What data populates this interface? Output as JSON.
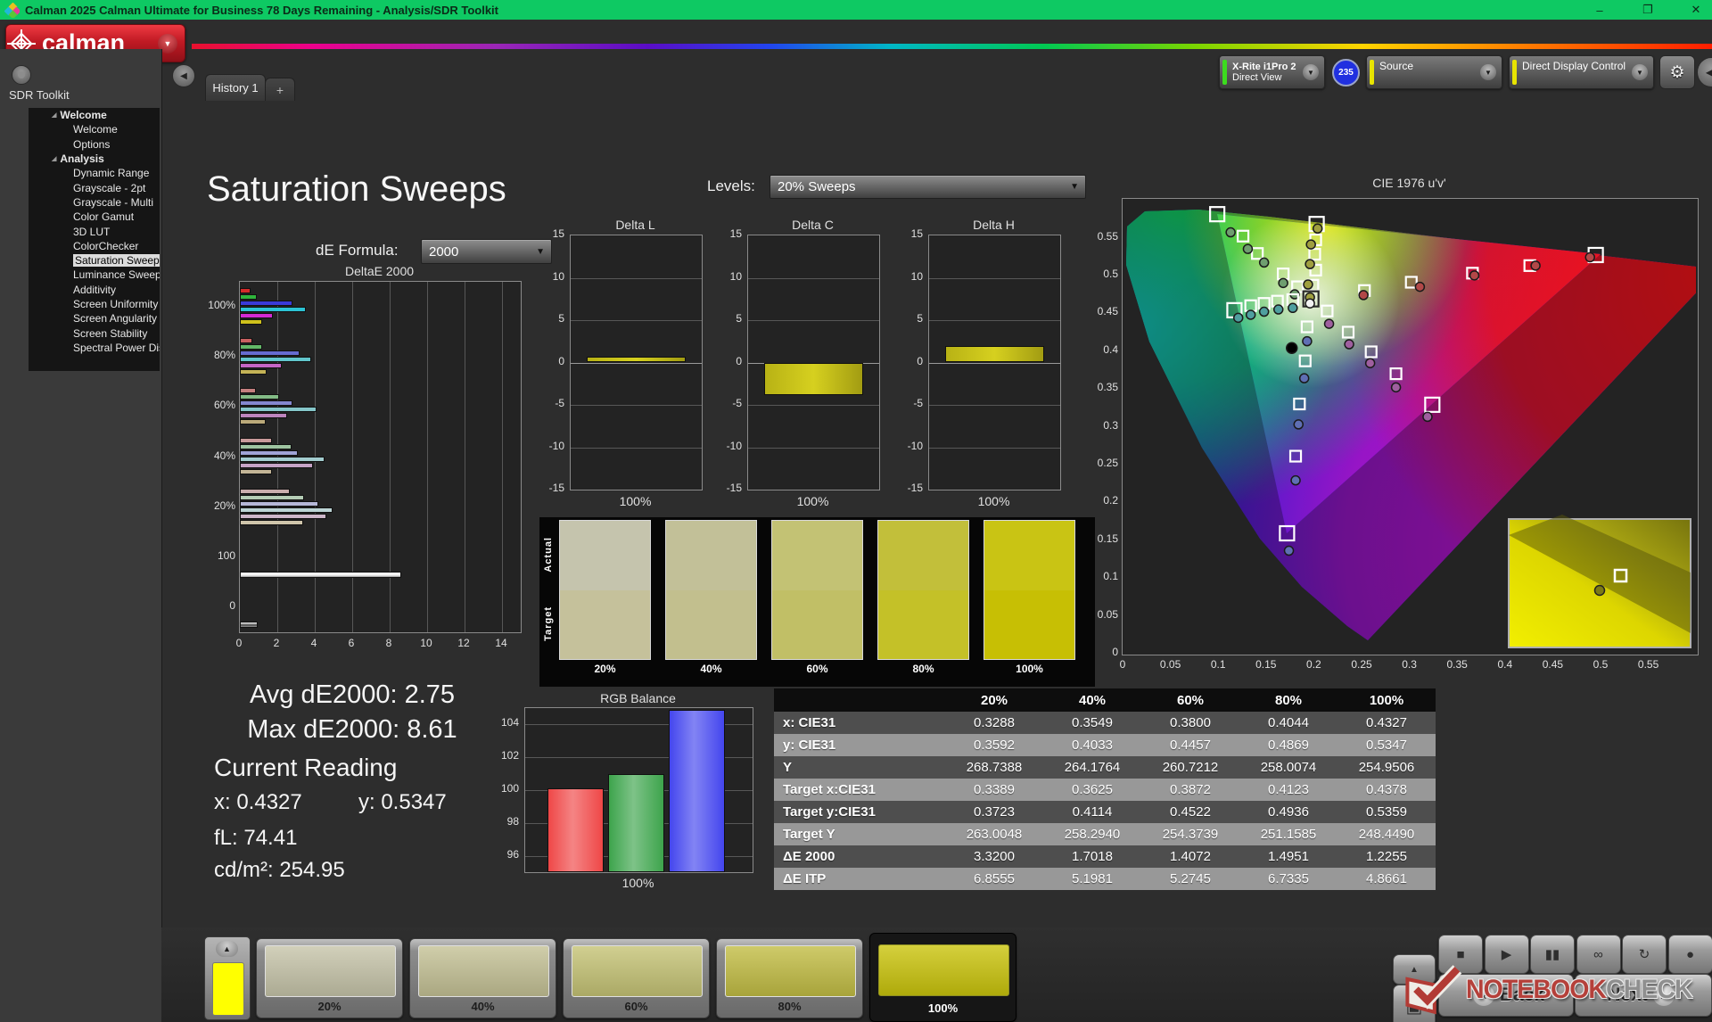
{
  "window": {
    "title": "Calman 2025 Calman Ultimate for Business 78 Days Remaining  - Analysis/SDR Toolkit",
    "controls": {
      "minimize": "–",
      "restore": "❐",
      "close": "✕"
    }
  },
  "brand": {
    "logo_text": "calman",
    "accent": "#c01a24"
  },
  "tabs": {
    "active": "History 1",
    "add": "+"
  },
  "top_controls": {
    "meter": {
      "line1": "X-Rite i1Pro 2",
      "line2": "Direct View",
      "badge": "235",
      "accent": "#3cdc1e",
      "badge_color": "#2030e0"
    },
    "source": {
      "label": "Source",
      "accent": "#e8e400"
    },
    "display_control": {
      "label": "Direct Display Control",
      "accent": "#e8e400"
    },
    "icons": [
      "dropdown-arrow",
      "gear",
      "collapse-left"
    ]
  },
  "sidebar": {
    "header": "SDR Toolkit",
    "tree": [
      {
        "label": "Welcome",
        "type": "group"
      },
      {
        "label": "Welcome",
        "type": "child"
      },
      {
        "label": "Options",
        "type": "child"
      },
      {
        "label": "Analysis",
        "type": "group"
      },
      {
        "label": "Dynamic Range",
        "type": "child"
      },
      {
        "label": "Grayscale - 2pt",
        "type": "child"
      },
      {
        "label": "Grayscale - Multi",
        "type": "child"
      },
      {
        "label": "Color Gamut",
        "type": "child"
      },
      {
        "label": "3D LUT",
        "type": "child"
      },
      {
        "label": "ColorChecker",
        "type": "child"
      },
      {
        "label": "Saturation Sweeps",
        "type": "child",
        "selected": true
      },
      {
        "label": "Luminance Sweeps",
        "type": "child"
      },
      {
        "label": "Additivity",
        "type": "child"
      },
      {
        "label": "Screen Uniformity",
        "type": "child"
      },
      {
        "label": "Screen Angularity",
        "type": "child"
      },
      {
        "label": "Screen Stability",
        "type": "child"
      },
      {
        "label": "Spectral Power Dist.",
        "type": "child"
      }
    ]
  },
  "main": {
    "title": "Saturation Sweeps",
    "levels_label": "Levels:",
    "levels_value": "20% Sweeps",
    "de_formula_label": "dE Formula:",
    "de_formula_value": "2000"
  },
  "readings": {
    "avg": "Avg dE2000: 2.75",
    "max": "Max dE2000: 8.61",
    "heading": "Current Reading",
    "x": "x: 0.4327",
    "y": "y: 0.5347",
    "fl": "fL: 74.41",
    "cdm2": "cd/m²: 254.95"
  },
  "chart_data": [
    {
      "id": "deltaE2000",
      "type": "bar",
      "orientation": "horizontal",
      "title": "DeltaE 2000",
      "xticks": [
        "0",
        "2",
        "4",
        "6",
        "8",
        "10",
        "12",
        "14"
      ],
      "xlim": [
        0,
        15
      ],
      "series_names": [
        "red",
        "green",
        "blue",
        "cyan",
        "magenta",
        "yellow"
      ],
      "groups": [
        {
          "label": "100%",
          "values": [
            0.55,
            0.9,
            2.8,
            3.5,
            1.75,
            1.2
          ],
          "colors": [
            "#d42a2a",
            "#2fb53c",
            "#3a3ad8",
            "#2cc3d4",
            "#d42ad4",
            "#cfc11c"
          ]
        },
        {
          "label": "80%",
          "values": [
            0.65,
            1.2,
            3.2,
            3.8,
            2.25,
            1.45
          ],
          "colors": [
            "#c96060",
            "#63b868",
            "#666bd0",
            "#62c6cc",
            "#c565c5",
            "#c4b356"
          ]
        },
        {
          "label": "60%",
          "values": [
            0.85,
            2.1,
            2.8,
            4.1,
            2.5,
            1.4
          ],
          "colors": [
            "#c47f7f",
            "#83bb86",
            "#8487cf",
            "#85c6c9",
            "#bd84bd",
            "#bba97a"
          ]
        },
        {
          "label": "40%",
          "values": [
            1.7,
            2.75,
            3.1,
            4.5,
            3.9,
            1.7
          ],
          "colors": [
            "#c89a9a",
            "#9fc4a1",
            "#a0a3d6",
            "#a3cdcf",
            "#c6a3c6",
            "#c4b697"
          ]
        },
        {
          "label": "20%",
          "values": [
            2.65,
            3.45,
            4.2,
            4.95,
            4.6,
            3.4
          ],
          "colors": [
            "#c9adad",
            "#b4ccb5",
            "#b6b8d8",
            "#bcd4d5",
            "#cdb6c9",
            "#cfc5ab"
          ]
        },
        {
          "label": "100",
          "values": [
            8.61
          ],
          "colors": [
            "#f2f2f2"
          ]
        },
        {
          "label": "0",
          "values": [
            0.93
          ],
          "colors": [
            "#484848"
          ]
        }
      ]
    },
    {
      "id": "deltaL",
      "type": "bar",
      "title": "Delta L",
      "categories": [
        "100%"
      ],
      "values": [
        0.7
      ],
      "ylim": [
        -15,
        15
      ],
      "yticks": [
        "15",
        "10",
        "5",
        "0",
        "-5",
        "-10",
        "-15"
      ],
      "bar_color": "#d6d01f"
    },
    {
      "id": "deltaC",
      "type": "bar",
      "title": "Delta C",
      "categories": [
        "100%"
      ],
      "values": [
        -3.85
      ],
      "ylim": [
        -15,
        15
      ],
      "yticks": [
        "15",
        "10",
        "5",
        "0",
        "-5",
        "-10",
        "-15"
      ],
      "bar_color": "#d6d01f"
    },
    {
      "id": "deltaH",
      "type": "bar",
      "title": "Delta H",
      "categories": [
        "100%"
      ],
      "values": [
        1.9
      ],
      "ylim": [
        -15,
        15
      ],
      "yticks": [
        "15",
        "10",
        "5",
        "0",
        "-5",
        "-10",
        "-15"
      ],
      "bar_color": "#d6d01f"
    },
    {
      "id": "rgb_balance",
      "type": "bar",
      "title": "RGB Balance",
      "xlabel": "100%",
      "categories": [
        "Red",
        "Green",
        "Blue"
      ],
      "values": [
        100.1,
        101.0,
        104.9
      ],
      "colors": [
        "#ef4747",
        "#3da44c",
        "#4446ee"
      ],
      "ylim": [
        95,
        105
      ],
      "yticks": [
        104,
        102,
        100,
        98,
        96
      ]
    },
    {
      "id": "cie1976",
      "type": "scatter",
      "title": "CIE 1976 u'v'",
      "xlabel_ticks": [
        "0",
        "0.05",
        "0.1",
        "0.15",
        "0.2",
        "0.25",
        "0.3",
        "0.35",
        "0.4",
        "0.45",
        "0.5",
        "0.55"
      ],
      "ylabel_ticks": [
        "0",
        "0.05",
        "0.1",
        "0.15",
        "0.2",
        "0.25",
        "0.3",
        "0.35",
        "0.4",
        "0.45",
        "0.5",
        "0.55"
      ],
      "xlim": [
        0,
        0.6
      ],
      "ylim": [
        0,
        0.6
      ],
      "white_point": {
        "target": [
          0.197,
          0.468
        ],
        "measured": [
          0.196,
          0.462
        ]
      },
      "black_point": [
        0.177,
        0.403
      ],
      "gamut_triangle": [
        [
          0.099,
          0.58
        ],
        [
          0.5,
          0.527
        ],
        [
          0.172,
          0.158
        ]
      ],
      "sweeps": [
        {
          "name": "red",
          "fill": "#b24848",
          "targets": [
            [
              0.253,
              0.479
            ],
            [
              0.302,
              0.49
            ],
            [
              0.366,
              0.502
            ],
            [
              0.426,
              0.512
            ],
            [
              0.495,
              0.526
            ]
          ],
          "measured": [
            [
              0.252,
              0.473
            ],
            [
              0.311,
              0.484
            ],
            [
              0.368,
              0.499
            ],
            [
              0.432,
              0.512
            ],
            [
              0.489,
              0.523
            ]
          ]
        },
        {
          "name": "green",
          "fill": "#6f9e6f",
          "targets": [
            [
              0.183,
              0.484
            ],
            [
              0.168,
              0.501
            ],
            [
              0.141,
              0.528
            ],
            [
              0.126,
              0.551
            ],
            [
              0.099,
              0.58
            ]
          ],
          "measured": [
            [
              0.18,
              0.474
            ],
            [
              0.168,
              0.489
            ],
            [
              0.148,
              0.516
            ],
            [
              0.131,
              0.534
            ],
            [
              0.113,
              0.556
            ]
          ]
        },
        {
          "name": "blue",
          "fill": "#5f6fb4",
          "targets": [
            [
              0.193,
              0.431
            ],
            [
              0.191,
              0.386
            ],
            [
              0.185,
              0.329
            ],
            [
              0.181,
              0.26
            ],
            [
              0.172,
              0.158
            ]
          ],
          "measured": [
            [
              0.193,
              0.412
            ],
            [
              0.19,
              0.363
            ],
            [
              0.184,
              0.302
            ],
            [
              0.181,
              0.228
            ],
            [
              0.174,
              0.135
            ]
          ]
        },
        {
          "name": "cyan",
          "fill": "#4f9f9f",
          "targets": [
            [
              0.178,
              0.467
            ],
            [
              0.162,
              0.465
            ],
            [
              0.148,
              0.462
            ],
            [
              0.134,
              0.459
            ],
            [
              0.117,
              0.453
            ]
          ],
          "measured": [
            [
              0.178,
              0.456
            ],
            [
              0.163,
              0.454
            ],
            [
              0.148,
              0.451
            ],
            [
              0.134,
              0.447
            ],
            [
              0.121,
              0.443
            ]
          ]
        },
        {
          "name": "magenta",
          "fill": "#9f5f9f",
          "targets": [
            [
              0.214,
              0.452
            ],
            [
              0.236,
              0.424
            ],
            [
              0.26,
              0.398
            ],
            [
              0.286,
              0.369
            ],
            [
              0.324,
              0.328
            ]
          ],
          "measured": [
            [
              0.216,
              0.435
            ],
            [
              0.237,
              0.408
            ],
            [
              0.259,
              0.383
            ],
            [
              0.286,
              0.351
            ],
            [
              0.319,
              0.312
            ]
          ]
        },
        {
          "name": "yellow",
          "fill": "#9f9f3f",
          "targets": [
            [
              0.199,
              0.486
            ],
            [
              0.202,
              0.506
            ],
            [
              0.201,
              0.527
            ],
            [
              0.202,
              0.546
            ],
            [
              0.203,
              0.567
            ]
          ],
          "measured": [
            [
              0.196,
              0.47
            ],
            [
              0.194,
              0.487
            ],
            [
              0.196,
              0.514
            ],
            [
              0.197,
              0.54
            ],
            [
              0.204,
              0.561
            ]
          ]
        }
      ],
      "inset": {
        "square": [
          0.62,
          0.45
        ],
        "circle": [
          0.5,
          0.56
        ]
      }
    }
  ],
  "swatch_panel": {
    "row_labels": [
      "Actual",
      "Target"
    ],
    "columns": [
      {
        "label": "20%",
        "actual": "#c5c4ad",
        "target": "#c5c19b"
      },
      {
        "label": "40%",
        "actual": "#c2c098",
        "target": "#c2bf8e"
      },
      {
        "label": "60%",
        "actual": "#c3c274",
        "target": "#c1bf66"
      },
      {
        "label": "80%",
        "actual": "#c2bf3a",
        "target": "#c4c128"
      },
      {
        "label": "100%",
        "actual": "#c9c414",
        "target": "#c7bf04"
      }
    ]
  },
  "table": {
    "columns": [
      "",
      "20%",
      "40%",
      "60%",
      "80%",
      "100%"
    ],
    "rows": [
      {
        "label": "x: CIE31",
        "values": [
          "0.3288",
          "0.3549",
          "0.3800",
          "0.4044",
          "0.4327"
        ]
      },
      {
        "label": "y: CIE31",
        "values": [
          "0.3592",
          "0.4033",
          "0.4457",
          "0.4869",
          "0.5347"
        ]
      },
      {
        "label": "Y",
        "values": [
          "268.7388",
          "264.1764",
          "260.7212",
          "258.0074",
          "254.9506"
        ]
      },
      {
        "label": "Target x:CIE31",
        "values": [
          "0.3389",
          "0.3625",
          "0.3872",
          "0.4123",
          "0.4378"
        ]
      },
      {
        "label": "Target y:CIE31",
        "values": [
          "0.3723",
          "0.4114",
          "0.4522",
          "0.4936",
          "0.5359"
        ]
      },
      {
        "label": "Target Y",
        "values": [
          "263.0048",
          "258.2940",
          "254.3739",
          "251.1585",
          "248.4490"
        ]
      },
      {
        "label": "ΔE 2000",
        "values": [
          "3.3200",
          "1.7018",
          "1.4072",
          "1.4951",
          "1.2255"
        ]
      },
      {
        "label": "ΔE ITP",
        "values": [
          "6.8555",
          "5.1981",
          "5.2745",
          "6.7335",
          "4.8661"
        ]
      }
    ]
  },
  "toolbar": {
    "mini_patch_color": "#ffff00",
    "patches": [
      {
        "label": "20%",
        "color": "#c6c4a9"
      },
      {
        "label": "40%",
        "color": "#c4c195"
      },
      {
        "label": "60%",
        "color": "#c5c375"
      },
      {
        "label": "80%",
        "color": "#c2bd44"
      },
      {
        "label": "100%",
        "color": "#cac40c",
        "selected": true
      }
    ],
    "transport_icons": [
      "stop",
      "play",
      "pause",
      "loop",
      "refresh",
      "record"
    ],
    "back": "Back",
    "next": "Next"
  },
  "watermark": {
    "part1": "NOTEBOOK",
    "part2": "CHECK"
  }
}
